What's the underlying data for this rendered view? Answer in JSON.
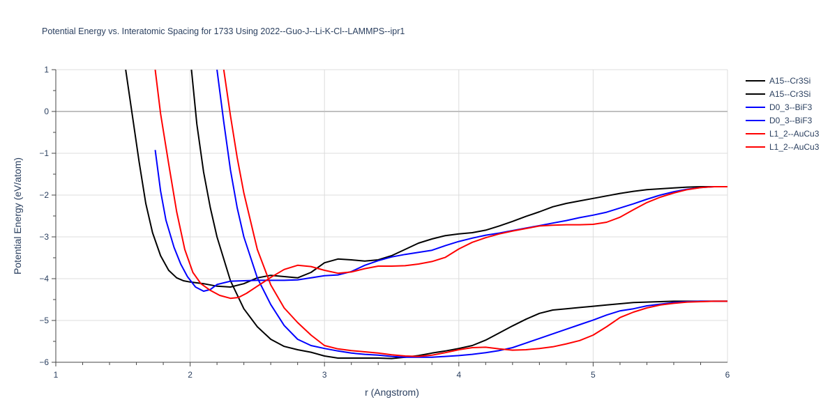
{
  "chart_data": {
    "type": "line",
    "title": "Potential Energy vs. Interatomic Spacing for 1733 Using 2022--Guo-J--Li-K-Cl--LAMMPS--ipr1",
    "xlabel": "r (Angstrom)",
    "ylabel": "Potential Energy (eV/atom)",
    "xlim": [
      1,
      6
    ],
    "ylim": [
      -6,
      1
    ],
    "xticks": [
      "1",
      "2",
      "3",
      "4",
      "5",
      "6"
    ],
    "yticks": [
      "1",
      "0",
      "−1",
      "−2",
      "−3",
      "−4",
      "−5",
      "−6"
    ],
    "grid": true,
    "legend_position": "right",
    "series": [
      {
        "name": "A15--Cr3Si",
        "color": "#000000",
        "x": [
          1.52,
          1.57,
          1.62,
          1.67,
          1.72,
          1.78,
          1.84,
          1.9,
          1.95,
          2.0,
          2.1,
          2.2,
          2.3,
          2.4,
          2.5,
          2.6,
          2.7,
          2.8,
          2.9,
          3.0,
          3.1,
          3.2,
          3.3,
          3.4,
          3.5,
          3.6,
          3.7,
          3.8,
          3.9,
          4.0,
          4.1,
          4.2,
          4.3,
          4.4,
          4.5,
          4.6,
          4.7,
          4.8,
          4.9,
          5.0,
          5.1,
          5.2,
          5.3,
          5.4,
          5.5,
          5.6,
          5.7,
          5.8,
          5.9,
          6.0
        ],
        "y": [
          1.0,
          -0.1,
          -1.2,
          -2.2,
          -2.9,
          -3.45,
          -3.8,
          -3.98,
          -4.05,
          -4.08,
          -4.12,
          -4.18,
          -4.2,
          -4.12,
          -3.98,
          -3.92,
          -3.95,
          -3.98,
          -3.85,
          -3.62,
          -3.53,
          -3.55,
          -3.58,
          -3.55,
          -3.45,
          -3.3,
          -3.15,
          -3.05,
          -2.97,
          -2.93,
          -2.9,
          -2.84,
          -2.74,
          -2.63,
          -2.51,
          -2.4,
          -2.28,
          -2.2,
          -2.14,
          -2.08,
          -2.02,
          -1.96,
          -1.91,
          -1.87,
          -1.85,
          -1.83,
          -1.81,
          -1.8,
          -1.8,
          -1.8
        ]
      },
      {
        "name": "A15--Cr3Si",
        "color": "#000000",
        "x": [
          2.01,
          2.05,
          2.1,
          2.15,
          2.2,
          2.3,
          2.4,
          2.5,
          2.6,
          2.7,
          2.8,
          2.9,
          3.0,
          3.1,
          3.2,
          3.3,
          3.4,
          3.5,
          3.6,
          3.7,
          3.8,
          3.9,
          4.0,
          4.1,
          4.2,
          4.3,
          4.4,
          4.5,
          4.6,
          4.7,
          4.8,
          4.9,
          5.0,
          5.1,
          5.2,
          5.3,
          5.4,
          5.5,
          5.6,
          5.7,
          5.8,
          5.9,
          6.0
        ],
        "y": [
          1.0,
          -0.3,
          -1.45,
          -2.3,
          -3.0,
          -4.05,
          -4.72,
          -5.15,
          -5.45,
          -5.62,
          -5.7,
          -5.76,
          -5.85,
          -5.9,
          -5.9,
          -5.9,
          -5.9,
          -5.91,
          -5.88,
          -5.84,
          -5.78,
          -5.73,
          -5.67,
          -5.6,
          -5.47,
          -5.3,
          -5.13,
          -4.97,
          -4.83,
          -4.75,
          -4.72,
          -4.69,
          -4.66,
          -4.63,
          -4.6,
          -4.57,
          -4.56,
          -4.55,
          -4.54,
          -4.54,
          -4.54,
          -4.54,
          -4.54
        ]
      },
      {
        "name": "D0_3--BiF3",
        "color": "#0000ff",
        "x": [
          1.74,
          1.78,
          1.82,
          1.88,
          1.93,
          1.98,
          2.04,
          2.1,
          2.15,
          2.2,
          2.3,
          2.4,
          2.5,
          2.6,
          2.7,
          2.8,
          2.9,
          3.0,
          3.1,
          3.2,
          3.3,
          3.4,
          3.5,
          3.6,
          3.7,
          3.8,
          3.9,
          4.0,
          4.1,
          4.2,
          4.3,
          4.4,
          4.5,
          4.6,
          4.7,
          4.8,
          4.9,
          5.0,
          5.1,
          5.2,
          5.3,
          5.4,
          5.5,
          5.6,
          5.7,
          5.8,
          5.9,
          6.0
        ],
        "y": [
          -0.92,
          -1.9,
          -2.6,
          -3.25,
          -3.65,
          -3.95,
          -4.2,
          -4.3,
          -4.26,
          -4.14,
          -4.06,
          -4.05,
          -4.04,
          -4.04,
          -4.04,
          -4.03,
          -3.98,
          -3.93,
          -3.91,
          -3.83,
          -3.68,
          -3.57,
          -3.48,
          -3.42,
          -3.37,
          -3.32,
          -3.21,
          -3.11,
          -3.03,
          -2.96,
          -2.91,
          -2.85,
          -2.79,
          -2.73,
          -2.67,
          -2.61,
          -2.54,
          -2.48,
          -2.41,
          -2.31,
          -2.21,
          -2.1,
          -2.0,
          -1.92,
          -1.86,
          -1.82,
          -1.8,
          -1.8
        ]
      },
      {
        "name": "D0_3--BiF3",
        "color": "#0000ff",
        "x": [
          2.2,
          2.25,
          2.3,
          2.35,
          2.4,
          2.5,
          2.6,
          2.7,
          2.8,
          2.9,
          3.0,
          3.1,
          3.2,
          3.3,
          3.4,
          3.5,
          3.6,
          3.7,
          3.8,
          3.9,
          4.0,
          4.1,
          4.2,
          4.3,
          4.4,
          4.5,
          4.6,
          4.7,
          4.8,
          4.9,
          5.0,
          5.1,
          5.2,
          5.3,
          5.4,
          5.5,
          5.6,
          5.7,
          5.8,
          5.9,
          6.0
        ],
        "y": [
          1.0,
          -0.25,
          -1.4,
          -2.3,
          -3.0,
          -3.98,
          -4.62,
          -5.12,
          -5.45,
          -5.6,
          -5.67,
          -5.73,
          -5.78,
          -5.81,
          -5.83,
          -5.86,
          -5.88,
          -5.88,
          -5.88,
          -5.86,
          -5.84,
          -5.81,
          -5.77,
          -5.72,
          -5.65,
          -5.54,
          -5.43,
          -5.32,
          -5.21,
          -5.1,
          -4.99,
          -4.87,
          -4.77,
          -4.72,
          -4.65,
          -4.61,
          -4.57,
          -4.55,
          -4.54,
          -4.54,
          -4.54
        ]
      },
      {
        "name": "L1_2--AuCu3",
        "color": "#ff0000",
        "x": [
          1.74,
          1.78,
          1.84,
          1.9,
          1.96,
          2.02,
          2.08,
          2.15,
          2.22,
          2.3,
          2.36,
          2.42,
          2.5,
          2.6,
          2.7,
          2.8,
          2.9,
          3.0,
          3.1,
          3.2,
          3.3,
          3.4,
          3.5,
          3.6,
          3.7,
          3.8,
          3.9,
          4.0,
          4.1,
          4.2,
          4.3,
          4.4,
          4.5,
          4.6,
          4.7,
          4.8,
          4.9,
          5.0,
          5.1,
          5.2,
          5.3,
          5.4,
          5.5,
          5.6,
          5.7,
          5.8,
          5.9,
          6.0
        ],
        "y": [
          1.0,
          -0.05,
          -1.25,
          -2.4,
          -3.3,
          -3.85,
          -4.12,
          -4.28,
          -4.4,
          -4.47,
          -4.45,
          -4.35,
          -4.18,
          -3.97,
          -3.78,
          -3.68,
          -3.71,
          -3.8,
          -3.87,
          -3.84,
          -3.76,
          -3.7,
          -3.7,
          -3.69,
          -3.65,
          -3.59,
          -3.49,
          -3.29,
          -3.13,
          -3.02,
          -2.93,
          -2.86,
          -2.8,
          -2.74,
          -2.72,
          -2.71,
          -2.71,
          -2.7,
          -2.65,
          -2.53,
          -2.35,
          -2.18,
          -2.05,
          -1.95,
          -1.87,
          -1.82,
          -1.8,
          -1.8
        ]
      },
      {
        "name": "L1_2--AuCu3",
        "color": "#ff0000",
        "x": [
          2.25,
          2.3,
          2.35,
          2.4,
          2.5,
          2.6,
          2.7,
          2.8,
          2.9,
          3.0,
          3.1,
          3.2,
          3.3,
          3.4,
          3.5,
          3.6,
          3.7,
          3.8,
          3.9,
          4.0,
          4.1,
          4.2,
          4.3,
          4.4,
          4.5,
          4.6,
          4.7,
          4.8,
          4.9,
          5.0,
          5.1,
          5.2,
          5.3,
          5.4,
          5.5,
          5.6,
          5.7,
          5.8,
          5.9,
          6.0
        ],
        "y": [
          1.0,
          -0.1,
          -1.1,
          -1.95,
          -3.3,
          -4.15,
          -4.7,
          -5.05,
          -5.35,
          -5.6,
          -5.68,
          -5.72,
          -5.75,
          -5.78,
          -5.82,
          -5.85,
          -5.86,
          -5.83,
          -5.77,
          -5.7,
          -5.65,
          -5.64,
          -5.68,
          -5.71,
          -5.7,
          -5.67,
          -5.63,
          -5.56,
          -5.48,
          -5.35,
          -5.15,
          -4.93,
          -4.8,
          -4.7,
          -4.63,
          -4.59,
          -4.56,
          -4.55,
          -4.54,
          -4.54
        ]
      }
    ]
  }
}
